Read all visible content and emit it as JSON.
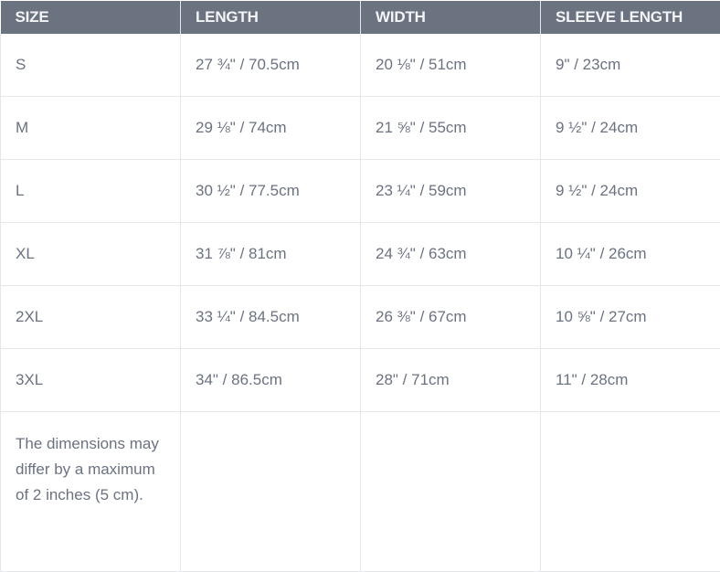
{
  "headers": [
    "SIZE",
    "LENGTH",
    "WIDTH",
    "SLEEVE LENGTH"
  ],
  "rows": [
    [
      "S",
      "27 ¾\" / 70.5cm",
      "20 ⅛\" / 51cm",
      "9\" / 23cm"
    ],
    [
      "M",
      "29 ⅛\" / 74cm",
      "21 ⅝\" / 55cm",
      "9 ½\" / 24cm"
    ],
    [
      "L",
      "30 ½\" / 77.5cm",
      "23 ¼\" / 59cm",
      "9 ½\" / 24cm"
    ],
    [
      "XL",
      "31 ⅞\" / 81cm",
      "24 ¾\" / 63cm",
      "10 ¼\" / 26cm"
    ],
    [
      "2XL",
      "33 ¼\" / 84.5cm",
      "26 ⅜\" / 67cm",
      "10 ⅝\" / 27cm"
    ],
    [
      "3XL",
      "34\" / 86.5cm",
      "28\" / 71cm",
      "11\" / 28cm"
    ]
  ],
  "note": "The dimensions may differ by a maximum of 2 inches (5 cm).",
  "colors": {
    "header_bg": "#6b7280",
    "header_text": "#f3f4f6",
    "cell_text": "#6b7280",
    "border": "#e5e7eb"
  }
}
